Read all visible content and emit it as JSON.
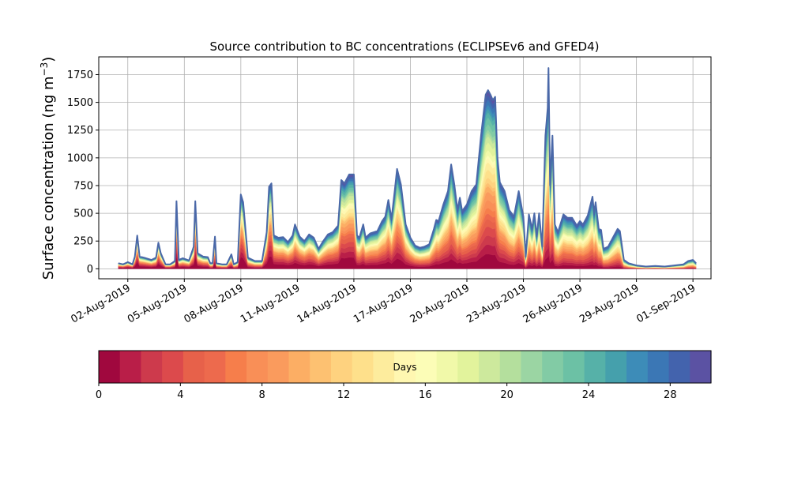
{
  "chart_data": {
    "type": "area",
    "title": "Source contribution to BC concentrations (ECLIPSEv6 and GFED4)",
    "ylabel_text": "Surface concentration (ng m",
    "ylabel_exp": "−3",
    "ylabel_close": ")",
    "xlabel": "",
    "ylim": [
      -90,
      1910
    ],
    "xlim": [
      "2019-07-31T11:00",
      "2019-09-01T23:00"
    ],
    "grid": true,
    "yticks": [
      0,
      250,
      500,
      750,
      1000,
      1250,
      1500,
      1750
    ],
    "ytick_labels": [
      "0",
      "250",
      "500",
      "750",
      "1000",
      "1250",
      "1500",
      "1750"
    ],
    "xticks": [
      "2019-08-02",
      "2019-08-05",
      "2019-08-08",
      "2019-08-11",
      "2019-08-14",
      "2019-08-17",
      "2019-08-20",
      "2019-08-23",
      "2019-08-26",
      "2019-08-29",
      "2019-09-01"
    ],
    "xtick_labels": [
      "02-Aug-2019",
      "05-Aug-2019",
      "08-Aug-2019",
      "11-Aug-2019",
      "14-Aug-2019",
      "17-Aug-2019",
      "20-Aug-2019",
      "23-Aug-2019",
      "26-Aug-2019",
      "29-Aug-2019",
      "01-Sep-2019"
    ],
    "total": [
      [
        "2019-08-01T12:00",
        50
      ],
      [
        "2019-08-01T18:00",
        40
      ],
      [
        "2019-08-02T00:00",
        60
      ],
      [
        "2019-08-02T06:00",
        40
      ],
      [
        "2019-08-02T09:00",
        110
      ],
      [
        "2019-08-02T12:00",
        300
      ],
      [
        "2019-08-02T15:00",
        110
      ],
      [
        "2019-08-02T21:00",
        100
      ],
      [
        "2019-08-03T06:00",
        80
      ],
      [
        "2019-08-03T12:00",
        100
      ],
      [
        "2019-08-03T15:00",
        235
      ],
      [
        "2019-08-03T18:00",
        140
      ],
      [
        "2019-08-04T00:00",
        40
      ],
      [
        "2019-08-04T06:00",
        40
      ],
      [
        "2019-08-04T12:00",
        70
      ],
      [
        "2019-08-04T14:00",
        610
      ],
      [
        "2019-08-04T17:00",
        80
      ],
      [
        "2019-08-04T22:00",
        95
      ],
      [
        "2019-08-05T06:00",
        75
      ],
      [
        "2019-08-05T12:00",
        200
      ],
      [
        "2019-08-05T14:00",
        610
      ],
      [
        "2019-08-05T17:00",
        140
      ],
      [
        "2019-08-06T00:00",
        110
      ],
      [
        "2019-08-06T06:00",
        105
      ],
      [
        "2019-08-06T09:00",
        50
      ],
      [
        "2019-08-06T12:00",
        50
      ],
      [
        "2019-08-06T15:00",
        290
      ],
      [
        "2019-08-06T17:00",
        50
      ],
      [
        "2019-08-07T00:00",
        40
      ],
      [
        "2019-08-07T06:00",
        40
      ],
      [
        "2019-08-07T12:00",
        130
      ],
      [
        "2019-08-07T15:00",
        40
      ],
      [
        "2019-08-07T20:00",
        60
      ],
      [
        "2019-08-08T00:00",
        670
      ],
      [
        "2019-08-08T03:00",
        600
      ],
      [
        "2019-08-08T09:00",
        100
      ],
      [
        "2019-08-08T18:00",
        70
      ],
      [
        "2019-08-09T03:00",
        70
      ],
      [
        "2019-08-09T09:00",
        330
      ],
      [
        "2019-08-09T12:00",
        740
      ],
      [
        "2019-08-09T15:00",
        770
      ],
      [
        "2019-08-09T18:00",
        300
      ],
      [
        "2019-08-10T00:00",
        280
      ],
      [
        "2019-08-10T06:00",
        285
      ],
      [
        "2019-08-10T12:00",
        240
      ],
      [
        "2019-08-10T18:00",
        300
      ],
      [
        "2019-08-10T21:00",
        400
      ],
      [
        "2019-08-11T03:00",
        290
      ],
      [
        "2019-08-11T09:00",
        250
      ],
      [
        "2019-08-11T15:00",
        310
      ],
      [
        "2019-08-11T21:00",
        280
      ],
      [
        "2019-08-12T03:00",
        180
      ],
      [
        "2019-08-12T09:00",
        250
      ],
      [
        "2019-08-12T15:00",
        310
      ],
      [
        "2019-08-12T21:00",
        330
      ],
      [
        "2019-08-13T04:00",
        390
      ],
      [
        "2019-08-13T08:00",
        800
      ],
      [
        "2019-08-13T12:00",
        770
      ],
      [
        "2019-08-13T18:00",
        850
      ],
      [
        "2019-08-14T00:00",
        850
      ],
      [
        "2019-08-14T04:00",
        300
      ],
      [
        "2019-08-14T07:00",
        280
      ],
      [
        "2019-08-14T12:00",
        400
      ],
      [
        "2019-08-14T15:00",
        280
      ],
      [
        "2019-08-14T21:00",
        320
      ],
      [
        "2019-08-15T06:00",
        340
      ],
      [
        "2019-08-15T12:00",
        430
      ],
      [
        "2019-08-15T16:00",
        470
      ],
      [
        "2019-08-15T20:00",
        620
      ],
      [
        "2019-08-16T00:00",
        450
      ],
      [
        "2019-08-16T04:00",
        700
      ],
      [
        "2019-08-16T07:00",
        900
      ],
      [
        "2019-08-16T12:00",
        760
      ],
      [
        "2019-08-16T18:00",
        400
      ],
      [
        "2019-08-17T00:00",
        280
      ],
      [
        "2019-08-17T06:00",
        210
      ],
      [
        "2019-08-17T12:00",
        190
      ],
      [
        "2019-08-17T18:00",
        200
      ],
      [
        "2019-08-18T00:00",
        220
      ],
      [
        "2019-08-18T06:00",
        360
      ],
      [
        "2019-08-18T09:00",
        440
      ],
      [
        "2019-08-18T12:00",
        430
      ],
      [
        "2019-08-18T18:00",
        580
      ],
      [
        "2019-08-19T00:00",
        700
      ],
      [
        "2019-08-19T04:00",
        940
      ],
      [
        "2019-08-19T08:00",
        760
      ],
      [
        "2019-08-19T12:00",
        530
      ],
      [
        "2019-08-19T15:00",
        640
      ],
      [
        "2019-08-19T18:00",
        520
      ],
      [
        "2019-08-20T00:00",
        580
      ],
      [
        "2019-08-20T06:00",
        700
      ],
      [
        "2019-08-20T12:00",
        760
      ],
      [
        "2019-08-20T18:00",
        1200
      ],
      [
        "2019-08-21T00:00",
        1570
      ],
      [
        "2019-08-21T03:00",
        1610
      ],
      [
        "2019-08-21T06:00",
        1570
      ],
      [
        "2019-08-21T09:00",
        1520
      ],
      [
        "2019-08-21T12:00",
        1550
      ],
      [
        "2019-08-21T15:00",
        1000
      ],
      [
        "2019-08-21T18:00",
        780
      ],
      [
        "2019-08-22T00:00",
        700
      ],
      [
        "2019-08-22T06:00",
        530
      ],
      [
        "2019-08-22T12:00",
        470
      ],
      [
        "2019-08-22T18:00",
        700
      ],
      [
        "2019-08-23T00:00",
        470
      ],
      [
        "2019-08-23T03:00",
        110
      ],
      [
        "2019-08-23T07:00",
        490
      ],
      [
        "2019-08-23T11:00",
        360
      ],
      [
        "2019-08-23T14:00",
        500
      ],
      [
        "2019-08-23T17:00",
        290
      ],
      [
        "2019-08-23T20:00",
        500
      ],
      [
        "2019-08-24T00:00",
        200
      ],
      [
        "2019-08-24T04:00",
        1200
      ],
      [
        "2019-08-24T07:00",
        1450
      ],
      [
        "2019-08-24T08:00",
        1810
      ],
      [
        "2019-08-24T10:00",
        750
      ],
      [
        "2019-08-24T13:00",
        1200
      ],
      [
        "2019-08-24T16:00",
        400
      ],
      [
        "2019-08-24T20:00",
        330
      ],
      [
        "2019-08-25T00:00",
        420
      ],
      [
        "2019-08-25T03:00",
        490
      ],
      [
        "2019-08-25T08:00",
        460
      ],
      [
        "2019-08-25T14:00",
        460
      ],
      [
        "2019-08-25T20:00",
        390
      ],
      [
        "2019-08-26T00:00",
        430
      ],
      [
        "2019-08-26T04:00",
        400
      ],
      [
        "2019-08-26T10:00",
        480
      ],
      [
        "2019-08-26T16:00",
        650
      ],
      [
        "2019-08-26T18:00",
        500
      ],
      [
        "2019-08-26T20:00",
        600
      ],
      [
        "2019-08-27T00:00",
        360
      ],
      [
        "2019-08-27T03:00",
        350
      ],
      [
        "2019-08-27T06:00",
        180
      ],
      [
        "2019-08-27T12:00",
        200
      ],
      [
        "2019-08-27T18:00",
        280
      ],
      [
        "2019-08-28T00:00",
        360
      ],
      [
        "2019-08-28T03:00",
        340
      ],
      [
        "2019-08-28T08:00",
        80
      ],
      [
        "2019-08-28T14:00",
        50
      ],
      [
        "2019-08-29T00:00",
        30
      ],
      [
        "2019-08-29T12:00",
        20
      ],
      [
        "2019-08-30T00:00",
        25
      ],
      [
        "2019-08-30T12:00",
        20
      ],
      [
        "2019-08-31T00:00",
        30
      ],
      [
        "2019-08-31T12:00",
        40
      ],
      [
        "2019-08-31T18:00",
        70
      ],
      [
        "2019-09-01T00:00",
        80
      ],
      [
        "2019-09-01T04:00",
        50
      ]
    ],
    "colorbar": {
      "label": "Days",
      "range": [
        0,
        30
      ],
      "ticks": [
        0,
        4,
        8,
        12,
        16,
        20,
        24,
        28
      ],
      "tick_labels": [
        "0",
        "4",
        "8",
        "12",
        "16",
        "20",
        "24",
        "28"
      ],
      "colors": [
        "#a0083e",
        "#b91e48",
        "#cd3a4c",
        "#dc4a4c",
        "#e7614a",
        "#ed6a4d",
        "#f67e4b",
        "#f98f57",
        "#fa9b5d",
        "#fcae64",
        "#fdc171",
        "#fed27f",
        "#fee08b",
        "#fdec9d",
        "#fff7b1",
        "#fcfdb7",
        "#f1f9a9",
        "#e2f39c",
        "#cde99d",
        "#b4df9d",
        "#9bd5a3",
        "#82cba5",
        "#6cc1a5",
        "#56b1a8",
        "#45a0ac",
        "#3d8cb8",
        "#3b77b5",
        "#4363ad",
        "#5b52a3"
      ]
    }
  }
}
